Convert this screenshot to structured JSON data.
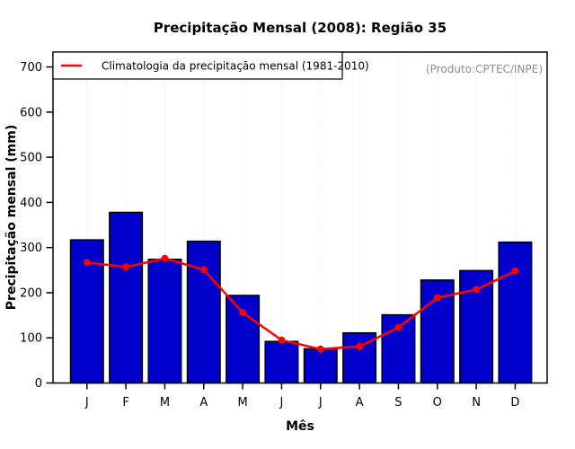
{
  "title": "Precipitação Mensal (2008): Região 35",
  "product_note": "(Produto:CPTEC/INPE)",
  "legend": {
    "label": "Climatologia da precipitação mensal (1981-2010)",
    "line_color": "#FF0000",
    "position": "top-left"
  },
  "axes": {
    "x_label": "Mês",
    "y_label": "Precipitação mensal (mm)",
    "y_ticks": [
      0,
      100,
      200,
      300,
      400,
      500,
      600,
      700
    ],
    "x_tick_labels": [
      "J",
      "F",
      "M",
      "A",
      "M",
      "J",
      "J",
      "A",
      "S",
      "O",
      "N",
      "D"
    ]
  },
  "colors": {
    "bar_fill": "#0000CD",
    "bar_border": "#000000",
    "line": "#FF0000",
    "grid": "#D9D9D9",
    "note": "#8C8C8C",
    "background": "#FFFFFF"
  },
  "chart_data": {
    "type": "bar",
    "categories": [
      "J",
      "F",
      "M",
      "A",
      "M",
      "J",
      "J",
      "A",
      "S",
      "O",
      "N",
      "D"
    ],
    "series": [
      {
        "name": "Precipitação mensal 2008",
        "type": "bar",
        "color": "#0000CD",
        "values": [
          317,
          378,
          274,
          314,
          194,
          92,
          76,
          111,
          151,
          228,
          249,
          312
        ]
      },
      {
        "name": "Climatologia da precipitação mensal (1981-2010)",
        "type": "line",
        "color": "#FF0000",
        "values": [
          267,
          257,
          276,
          251,
          156,
          95,
          75,
          81,
          123,
          189,
          207,
          248
        ]
      }
    ],
    "title": "Precipitação Mensal (2008): Região 35",
    "xlabel": "Mês",
    "ylabel": "Precipitação mensal (mm)",
    "ylim": [
      0,
      733
    ],
    "grid": "vertical-dotted",
    "legend_position": "top-left",
    "annotation": "(Produto:CPTEC/INPE)"
  }
}
